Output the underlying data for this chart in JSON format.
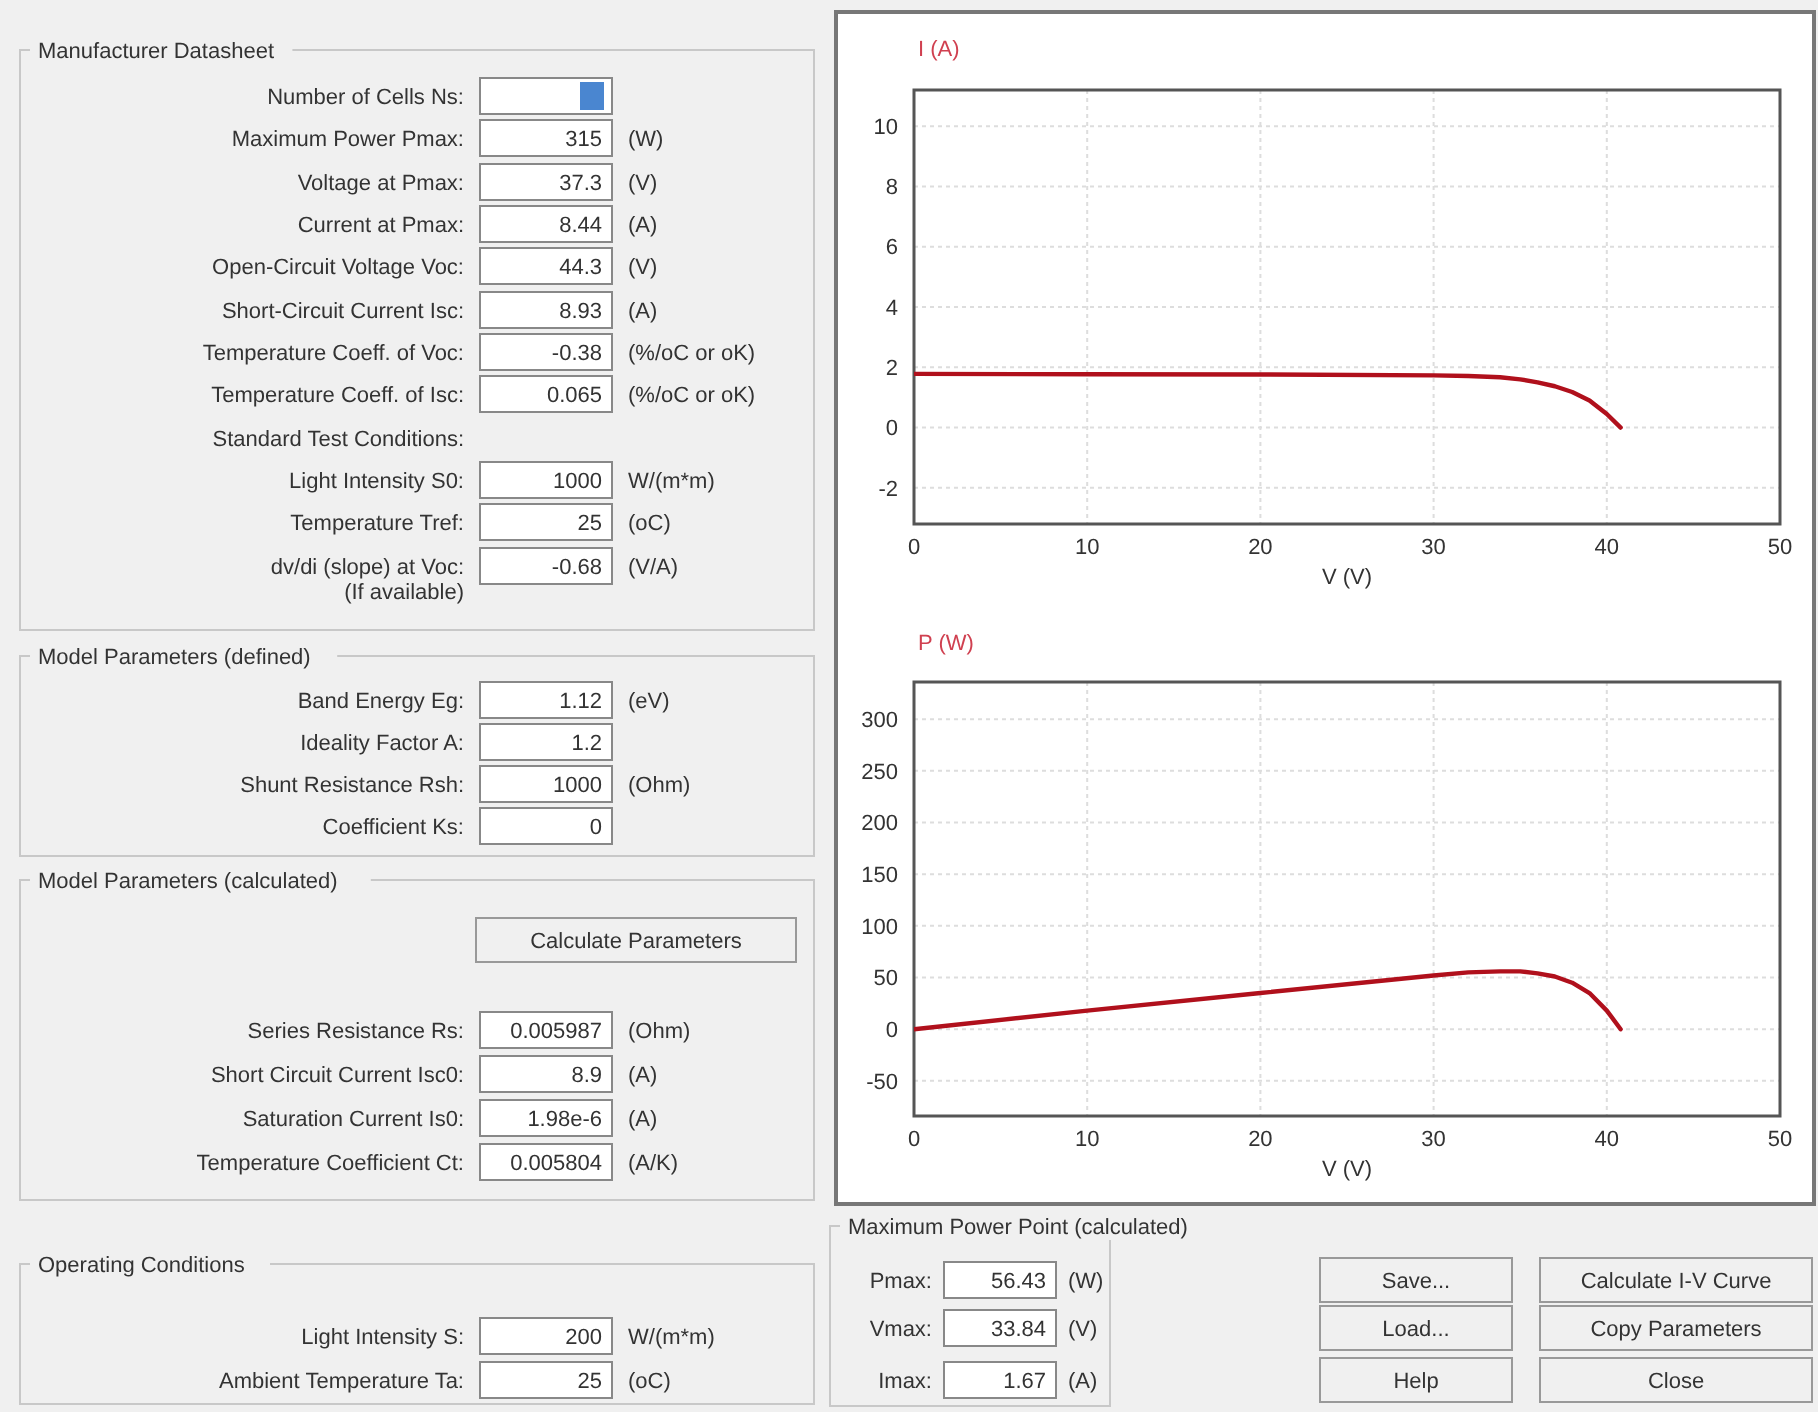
{
  "chart_data": [
    {
      "type": "line",
      "ylabel": "I (A)",
      "xlabel": "V (V)",
      "xlim": [
        0,
        50
      ],
      "xticks": [
        0,
        10,
        20,
        30,
        40,
        50
      ],
      "ylim": [
        -3.2,
        11.2
      ],
      "yticks": [
        -2,
        0,
        2,
        4,
        6,
        8,
        10
      ],
      "grid": true,
      "x": [
        0,
        10,
        20,
        30,
        32,
        33.84,
        35,
        36,
        37,
        38,
        39,
        40,
        40.8
      ],
      "series": [
        {
          "color": "#b0101c",
          "values": [
            1.78,
            1.77,
            1.76,
            1.73,
            1.71,
            1.67,
            1.6,
            1.5,
            1.37,
            1.18,
            0.9,
            0.45,
            0
          ]
        }
      ]
    },
    {
      "type": "line",
      "ylabel": "P (W)",
      "xlabel": "V (V)",
      "xlim": [
        0,
        50
      ],
      "xticks": [
        0,
        10,
        20,
        30,
        40,
        50
      ],
      "ylim": [
        -84,
        336
      ],
      "yticks": [
        -50,
        0,
        50,
        100,
        150,
        200,
        250,
        300
      ],
      "grid": true,
      "x": [
        0,
        10,
        20,
        30,
        32,
        33.84,
        35,
        36,
        37,
        38,
        39,
        40,
        40.8
      ],
      "series": [
        {
          "color": "#b0101c",
          "values": [
            0,
            18,
            35,
            52,
            55,
            56,
            56,
            54,
            51,
            45,
            35,
            18,
            0
          ]
        }
      ]
    },
    {
      "type": "other",
      "title": "Manufacturer Datasheet",
      "annotations": [
        "Number of Cells Ns:",
        "Maximum Power Pmax:",
        "315",
        "(W)",
        "Voltage at Pmax:",
        "37.3",
        "(V)",
        "Current at Pmax:",
        "8.44",
        "(A)",
        "Open-Circuit Voltage Voc:",
        "44.3",
        "(V)",
        "Short-Circuit Current Isc:",
        "8.93",
        "(A)",
        "Temperature Coeff. of Voc:",
        "-0.38",
        "(%/oC or oK)",
        "Temperature Coeff. of Isc:",
        "0.065",
        "(%/oC or oK)",
        "Standard Test Conditions:",
        "Light Intensity S0:",
        "1000",
        "W/(m*m)",
        "Temperature Tref:",
        "25",
        "(oC)",
        "dv/di (slope) at Voc:\n(If available)",
        "-0.68",
        "(V/A)"
      ]
    },
    {
      "type": "other",
      "title": "Model Parameters (defined)",
      "annotations": [
        "Band Energy Eg:",
        "1.12",
        "(eV)",
        "Ideality Factor A:",
        "1.2",
        "Shunt Resistance Rsh:",
        "1000",
        "(Ohm)",
        "Coefficient Ks:",
        "0"
      ]
    },
    {
      "type": "other",
      "title": "Model Parameters (calculated)",
      "annotations": [
        "Calculate Parameters",
        "Series Resistance Rs:",
        "0.005987",
        "(Ohm)",
        "Short Circuit Current Isc0:",
        "8.9",
        "(A)",
        "Saturation Current Is0:",
        "1.98e-6",
        "(A)",
        "Temperature Coefficient Ct:",
        "0.005804",
        "(A/K)"
      ]
    },
    {
      "type": "other",
      "title": "Operating Conditions",
      "annotations": [
        "Light Intensity S:",
        "200",
        "W/(m*m)",
        "Ambient Temperature Ta:",
        "25",
        "(oC)"
      ]
    },
    {
      "type": "other",
      "title": "Maximum Power Point (calculated)",
      "annotations": [
        "Pmax:",
        "56.43",
        "(W)",
        "Vmax:",
        "33.84",
        "(V)",
        "Imax:",
        "1.67",
        "(A)"
      ]
    },
    {
      "type": "other",
      "annotations": [
        "Save...",
        "Load...",
        "Help",
        "Calculate I-V Curve",
        "Copy Parameters",
        "Close"
      ]
    }
  ]
}
